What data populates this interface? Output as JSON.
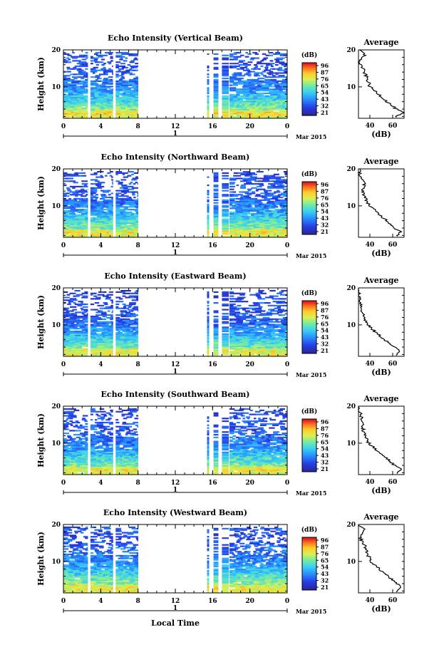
{
  "figure": {
    "xlabel": "Local Time",
    "ylabel": "Height (km)",
    "date_label": "Mar 2015",
    "day_label": "1",
    "xticks": [
      "0",
      "4",
      "8",
      "12",
      "16",
      "20",
      "0"
    ],
    "yticks": [
      "20",
      "10"
    ],
    "colorbar_unit": "(dB)",
    "colorbar_ticks": [
      "96",
      "87",
      "76",
      "65",
      "54",
      "43",
      "32",
      "21"
    ],
    "profile_title": "Average",
    "profile_xlabel": "(dB)",
    "profile_xticks": [
      "40",
      "60"
    ],
    "profile_yticks": [
      "20",
      "10"
    ]
  },
  "chart_data": [
    {
      "type": "heatmap",
      "title": "Echo Intensity (Vertical Beam)",
      "xlabel": "Local Time",
      "ylabel": "Height (km)",
      "xlim": [
        0,
        24
      ],
      "ylim": [
        1.5,
        20
      ],
      "color_unit": "dB",
      "color_range": [
        21,
        96
      ],
      "data_blocks_hours": [
        [
          0,
          2.6
        ],
        [
          2.9,
          5.3
        ],
        [
          5.6,
          8
        ],
        [
          15.4,
          15.6
        ],
        [
          16.1,
          16.6
        ],
        [
          17,
          17.7
        ],
        [
          17.8,
          24
        ]
      ],
      "profile": {
        "title": "Average",
        "xlabel": "(dB)",
        "xlim": [
          30,
          70
        ],
        "ylim": [
          1.5,
          20
        ],
        "height_km": [
          20,
          18.5,
          17,
          15.5,
          14,
          12,
          10,
          8,
          6,
          4,
          3,
          2
        ],
        "mean_db": [
          31,
          36,
          30,
          33,
          35,
          38,
          40,
          48,
          55,
          63,
          69,
          62
        ]
      }
    },
    {
      "type": "heatmap",
      "title": "Echo Intensity (Northward Beam)",
      "xlabel": "Local Time",
      "ylabel": "Height (km)",
      "xlim": [
        0,
        24
      ],
      "ylim": [
        1.5,
        20
      ],
      "color_unit": "dB",
      "color_range": [
        21,
        96
      ],
      "data_blocks_hours": [
        [
          0,
          2.6
        ],
        [
          2.9,
          5.3
        ],
        [
          5.6,
          8
        ],
        [
          15.4,
          15.6
        ],
        [
          16.1,
          16.6
        ],
        [
          17,
          17.7
        ],
        [
          17.8,
          24
        ]
      ],
      "profile": {
        "title": "Average",
        "xlabel": "(dB)",
        "xlim": [
          30,
          70
        ],
        "ylim": [
          1.5,
          20
        ],
        "height_km": [
          20,
          18,
          16,
          14,
          12,
          10,
          8,
          6,
          4,
          3,
          2
        ],
        "mean_db": [
          30,
          32,
          35,
          34,
          36,
          40,
          47,
          55,
          62,
          67,
          65
        ]
      }
    },
    {
      "type": "heatmap",
      "title": "Echo Intensity (Eastward Beam)",
      "xlabel": "Local Time",
      "ylabel": "Height (km)",
      "xlim": [
        0,
        24
      ],
      "ylim": [
        1.5,
        20
      ],
      "color_unit": "dB",
      "color_range": [
        21,
        96
      ],
      "data_blocks_hours": [
        [
          0,
          2.6
        ],
        [
          2.9,
          5.3
        ],
        [
          5.6,
          8
        ],
        [
          15.4,
          15.6
        ],
        [
          16.1,
          16.6
        ],
        [
          17,
          17.7
        ],
        [
          17.8,
          24
        ]
      ],
      "profile": {
        "title": "Average",
        "xlabel": "(dB)",
        "xlim": [
          30,
          70
        ],
        "ylim": [
          1.5,
          20
        ],
        "height_km": [
          20,
          18,
          16,
          14,
          12,
          10,
          8,
          6,
          4,
          3,
          2
        ],
        "mean_db": [
          28,
          31,
          32,
          33,
          35,
          38,
          45,
          53,
          61,
          66,
          64
        ]
      }
    },
    {
      "type": "heatmap",
      "title": "Echo Intensity (Southward Beam)",
      "xlabel": "Local Time",
      "ylabel": "Height (km)",
      "xlim": [
        0,
        24
      ],
      "ylim": [
        1.5,
        20
      ],
      "color_unit": "dB",
      "color_range": [
        21,
        96
      ],
      "data_blocks_hours": [
        [
          0,
          2.6
        ],
        [
          2.9,
          5.3
        ],
        [
          5.6,
          8
        ],
        [
          15.4,
          15.6
        ],
        [
          16.1,
          16.6
        ],
        [
          17,
          17.7
        ],
        [
          17.8,
          24
        ]
      ],
      "profile": {
        "title": "Average",
        "xlabel": "(dB)",
        "xlim": [
          30,
          70
        ],
        "ylim": [
          1.5,
          20
        ],
        "height_km": [
          20,
          18,
          16,
          14,
          12,
          10,
          8,
          6,
          4,
          3,
          2
        ],
        "mean_db": [
          29,
          32,
          33,
          34,
          36,
          39,
          46,
          54,
          62,
          67,
          64
        ]
      }
    },
    {
      "type": "heatmap",
      "title": "Echo Intensity (Westward Beam)",
      "xlabel": "Local Time",
      "ylabel": "Height (km)",
      "xlim": [
        0,
        24
      ],
      "ylim": [
        1.5,
        20
      ],
      "color_unit": "dB",
      "color_range": [
        21,
        96
      ],
      "data_blocks_hours": [
        [
          0,
          2.6
        ],
        [
          2.9,
          5.3
        ],
        [
          5.6,
          8
        ],
        [
          15.4,
          15.6
        ],
        [
          16.1,
          16.6
        ],
        [
          17,
          17.7
        ],
        [
          17.8,
          24
        ]
      ],
      "profile": {
        "title": "Average",
        "xlabel": "(dB)",
        "xlim": [
          30,
          70
        ],
        "ylim": [
          1.5,
          20
        ],
        "height_km": [
          20,
          18.5,
          17,
          15.5,
          14,
          12,
          10,
          8,
          6,
          4,
          3,
          2
        ],
        "mean_db": [
          30,
          35,
          31,
          33,
          36,
          38,
          41,
          48,
          56,
          63,
          68,
          63
        ]
      }
    }
  ]
}
